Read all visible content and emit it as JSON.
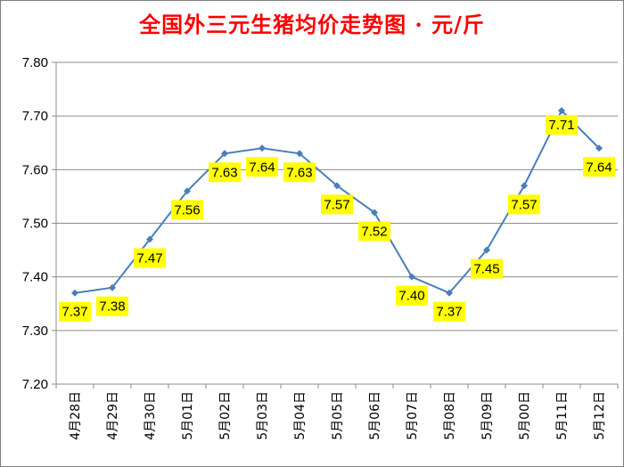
{
  "chart_data": {
    "type": "line",
    "title": "全国外三元生猪均价走势图 · 元/斤",
    "xlabel": "",
    "ylabel": "",
    "ylim": [
      7.2,
      7.8
    ],
    "ytick_step": 0.1,
    "ytick_labels": [
      "7.20",
      "7.30",
      "7.40",
      "7.50",
      "7.60",
      "7.70",
      "7.80"
    ],
    "grid": true,
    "legend": "none",
    "categories": [
      "4月28日",
      "4月29日",
      "4月30日",
      "5月01日",
      "5月02日",
      "5月03日",
      "5月04日",
      "5月05日",
      "5月06日",
      "5月07日",
      "5月08日",
      "5月09日",
      "5月00日",
      "5月11日",
      "5月12日"
    ],
    "series": [
      {
        "values": [
          7.37,
          7.38,
          7.47,
          7.56,
          7.63,
          7.64,
          7.63,
          7.57,
          7.52,
          7.4,
          7.37,
          7.45,
          7.57,
          7.71,
          7.64
        ],
        "labels": [
          "7.37",
          "7.38",
          "7.47",
          "7.56",
          "7.63",
          "7.64",
          "7.63",
          "7.57",
          "7.52",
          "7.40",
          "7.37",
          "7.45",
          "7.57",
          "7.71",
          "7.64"
        ]
      }
    ],
    "colors": {
      "line": "#4a7ebb",
      "label_bg": "#ffff00",
      "grid": "#8c8c8c",
      "title": "#ff0000"
    }
  }
}
